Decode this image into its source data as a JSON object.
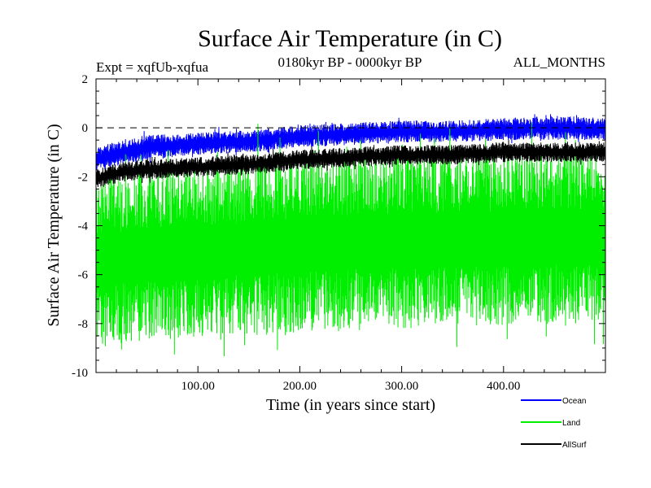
{
  "chart_data": {
    "type": "line",
    "title": "Surface Air Temperature (in C)",
    "subtitle_left": "Expt = xqfUb-xqfua",
    "subtitle_center": "0180kyr BP - 0000kyr BP",
    "subtitle_right": "ALL_MONTHS",
    "xlabel": "Time (in years since start)",
    "ylabel": "Surface Air Temperature (in C)",
    "xlim": [
      0,
      500
    ],
    "ylim": [
      -10,
      2
    ],
    "xticks": [
      100,
      200,
      300,
      400
    ],
    "xtick_labels": [
      "100.00",
      "200.00",
      "300.00",
      "400.00"
    ],
    "yticks": [
      -10,
      -8,
      -6,
      -4,
      -2,
      0,
      2
    ],
    "ytick_labels": [
      "-10",
      "-8",
      "-6",
      "-4",
      "-2",
      "0",
      "2"
    ],
    "reference_line": 0,
    "legend_position": "bottom-right, outside plot",
    "series": [
      {
        "name": "Ocean",
        "color": "#0000ff",
        "x": [
          0,
          25,
          50,
          100,
          150,
          200,
          250,
          300,
          350,
          400,
          450,
          500
        ],
        "upper": [
          -0.8,
          -0.5,
          -0.3,
          -0.2,
          -0.1,
          0.1,
          0.2,
          0.3,
          0.3,
          0.4,
          0.5,
          0.4
        ],
        "lower": [
          -1.8,
          -1.5,
          -1.3,
          -1.1,
          -1.0,
          -0.8,
          -0.7,
          -0.6,
          -0.6,
          -0.5,
          -0.5,
          -0.5
        ]
      },
      {
        "name": "Land",
        "color": "#00ee00",
        "x": [
          0,
          25,
          50,
          100,
          150,
          200,
          250,
          300,
          350,
          400,
          450,
          500
        ],
        "upper": [
          -2.0,
          -1.8,
          -1.6,
          -1.5,
          -1.4,
          -1.2,
          -1.1,
          -1.0,
          -1.0,
          -0.9,
          -0.8,
          -0.8
        ],
        "lower": [
          -9.0,
          -8.8,
          -8.7,
          -8.6,
          -8.5,
          -8.4,
          -8.3,
          -8.2,
          -8.2,
          -8.1,
          -8.0,
          -8.0
        ]
      },
      {
        "name": "AllSurf",
        "color": "#000000",
        "x": [
          0,
          25,
          50,
          100,
          150,
          200,
          250,
          300,
          350,
          400,
          450,
          500
        ],
        "upper": [
          -1.7,
          -1.4,
          -1.3,
          -1.2,
          -1.1,
          -0.9,
          -0.8,
          -0.7,
          -0.7,
          -0.6,
          -0.6,
          -0.6
        ],
        "lower": [
          -2.5,
          -2.2,
          -2.1,
          -2.0,
          -1.9,
          -1.7,
          -1.6,
          -1.5,
          -1.5,
          -1.4,
          -1.4,
          -1.4
        ]
      }
    ]
  }
}
